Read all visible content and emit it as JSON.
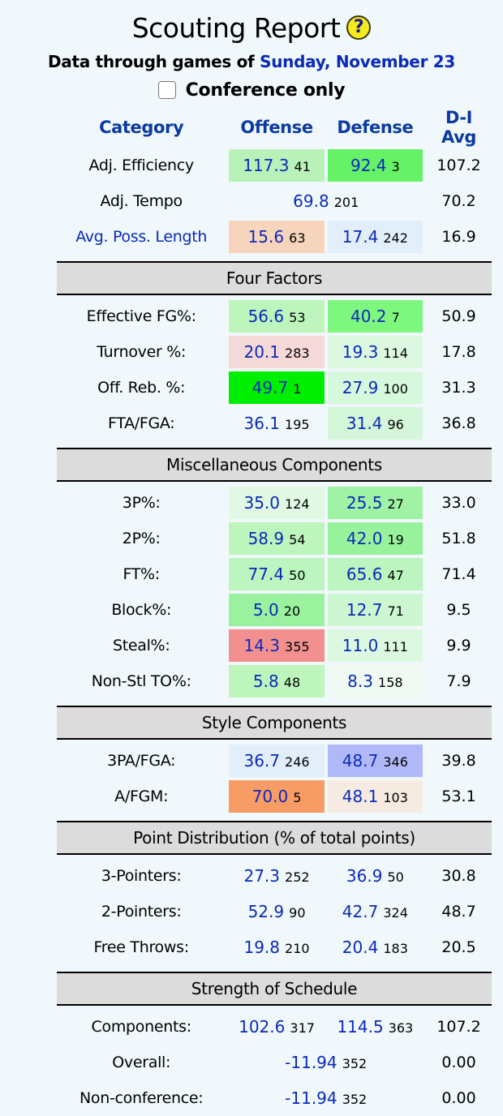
{
  "header": {
    "title": "Scouting Report",
    "help_icon": "question-mark-icon",
    "help_glyph": "?",
    "subtitle_prefix": "Data through games of",
    "subtitle_date": "Sunday, November 23",
    "conference_only_label": "Conference only",
    "conference_only_checked": false
  },
  "columns": [
    "Category",
    "Offense",
    "Defense",
    "D-I Avg"
  ],
  "colors": {
    "background": "#f0f8fc",
    "link_blue": "#0b2ab8",
    "header_blue": "#0b3aa0",
    "section_gray": "#dcdcdc"
  },
  "summary": [
    {
      "label": "Adj. Efficiency",
      "link": false,
      "off": {
        "value": "117.3",
        "rank": "41",
        "color": "#b8f2b8"
      },
      "def": {
        "value": "92.4",
        "rank": "3",
        "color": "#66f266"
      },
      "avg": "107.2"
    },
    {
      "label": "Adj. Tempo",
      "link": false,
      "combined": {
        "value": "69.8",
        "rank": "201"
      },
      "avg": "70.2"
    },
    {
      "label": "Avg. Poss. Length",
      "link": true,
      "off": {
        "value": "15.6",
        "rank": "63",
        "color": "#f7d4bc"
      },
      "def": {
        "value": "17.4",
        "rank": "242",
        "color": "#e2eefa"
      },
      "avg": "16.9"
    }
  ],
  "sections": [
    {
      "title": "Four Factors",
      "rows": [
        {
          "label": "Effective FG%:",
          "off": {
            "value": "56.6",
            "rank": "53",
            "color": "#bdf5bd"
          },
          "def": {
            "value": "40.2",
            "rank": "7",
            "color": "#7ef77e"
          },
          "avg": "50.9"
        },
        {
          "label": "Turnover %:",
          "off": {
            "value": "20.1",
            "rank": "283",
            "color": "#f5d8d8"
          },
          "def": {
            "value": "19.3",
            "rank": "114",
            "color": "#dcf8e0"
          },
          "avg": "17.8"
        },
        {
          "label": "Off. Reb. %:",
          "off": {
            "value": "49.7",
            "rank": "1",
            "color": "#00ee00"
          },
          "def": {
            "value": "27.9",
            "rank": "100",
            "color": "#d6f8dc"
          },
          "avg": "31.3"
        },
        {
          "label": "FTA/FGA:",
          "off": {
            "value": "36.1",
            "rank": "195",
            "color": ""
          },
          "def": {
            "value": "31.4",
            "rank": "96",
            "color": "#d4f7da"
          },
          "avg": "36.8"
        }
      ]
    },
    {
      "title": "Miscellaneous Components",
      "rows": [
        {
          "label": "3P%:",
          "off": {
            "value": "35.0",
            "rank": "124",
            "color": "#e0f8e4"
          },
          "def": {
            "value": "25.5",
            "rank": "27",
            "color": "#a0f2a4"
          },
          "avg": "33.0"
        },
        {
          "label": "2P%:",
          "off": {
            "value": "58.9",
            "rank": "54",
            "color": "#bdf5bd"
          },
          "def": {
            "value": "42.0",
            "rank": "19",
            "color": "#98f29c"
          },
          "avg": "51.8"
        },
        {
          "label": "FT%:",
          "off": {
            "value": "77.4",
            "rank": "50",
            "color": "#bcf5bf"
          },
          "def": {
            "value": "65.6",
            "rank": "47",
            "color": "#bcf5bf"
          },
          "avg": "71.4"
        },
        {
          "label": "Block%:",
          "off": {
            "value": "5.0",
            "rank": "20",
            "color": "#9af29e"
          },
          "def": {
            "value": "12.7",
            "rank": "71",
            "color": "#ccf7d0"
          },
          "avg": "9.5"
        },
        {
          "label": "Steal%:",
          "off": {
            "value": "14.3",
            "rank": "355",
            "color": "#f29090"
          },
          "def": {
            "value": "11.0",
            "rank": "111",
            "color": "#dcf8e0"
          },
          "avg": "9.9"
        },
        {
          "label": "Non-Stl TO%:",
          "off": {
            "value": "5.8",
            "rank": "48",
            "color": "#bdf5bd"
          },
          "def": {
            "value": "8.3",
            "rank": "158",
            "color": "#eefaf2"
          },
          "avg": "7.9"
        }
      ]
    },
    {
      "title": "Style Components",
      "rows": [
        {
          "label": "3PA/FGA:",
          "off": {
            "value": "36.7",
            "rank": "246",
            "color": "#e2eefa"
          },
          "def": {
            "value": "48.7",
            "rank": "346",
            "color": "#b0b8f7"
          },
          "avg": "39.8"
        },
        {
          "label": "A/FGM:",
          "off": {
            "value": "70.0",
            "rank": "5",
            "color": "#f79c64"
          },
          "def": {
            "value": "48.1",
            "rank": "103",
            "color": "#f5ebe0"
          },
          "avg": "53.1"
        }
      ]
    },
    {
      "title": "Point Distribution (% of total points)",
      "rows": [
        {
          "label": "3-Pointers:",
          "off": {
            "value": "27.3",
            "rank": "252",
            "color": ""
          },
          "def": {
            "value": "36.9",
            "rank": "50",
            "color": ""
          },
          "avg": "30.8"
        },
        {
          "label": "2-Pointers:",
          "off": {
            "value": "52.9",
            "rank": "90",
            "color": ""
          },
          "def": {
            "value": "42.7",
            "rank": "324",
            "color": ""
          },
          "avg": "48.7"
        },
        {
          "label": "Free Throws:",
          "off": {
            "value": "19.8",
            "rank": "210",
            "color": ""
          },
          "def": {
            "value": "20.4",
            "rank": "183",
            "color": ""
          },
          "avg": "20.5"
        }
      ]
    },
    {
      "title": "Strength of Schedule",
      "rows": [
        {
          "label": "Components:",
          "off": {
            "value": "102.6",
            "rank": "317",
            "color": ""
          },
          "def": {
            "value": "114.5",
            "rank": "363",
            "color": ""
          },
          "avg": "107.2"
        },
        {
          "label": "Overall:",
          "combined": {
            "value": "-11.94",
            "rank": "352"
          },
          "avg": "0.00"
        },
        {
          "label": "Non-conference:",
          "combined": {
            "value": "-11.94",
            "rank": "352"
          },
          "avg": "0.00"
        }
      ]
    }
  ]
}
